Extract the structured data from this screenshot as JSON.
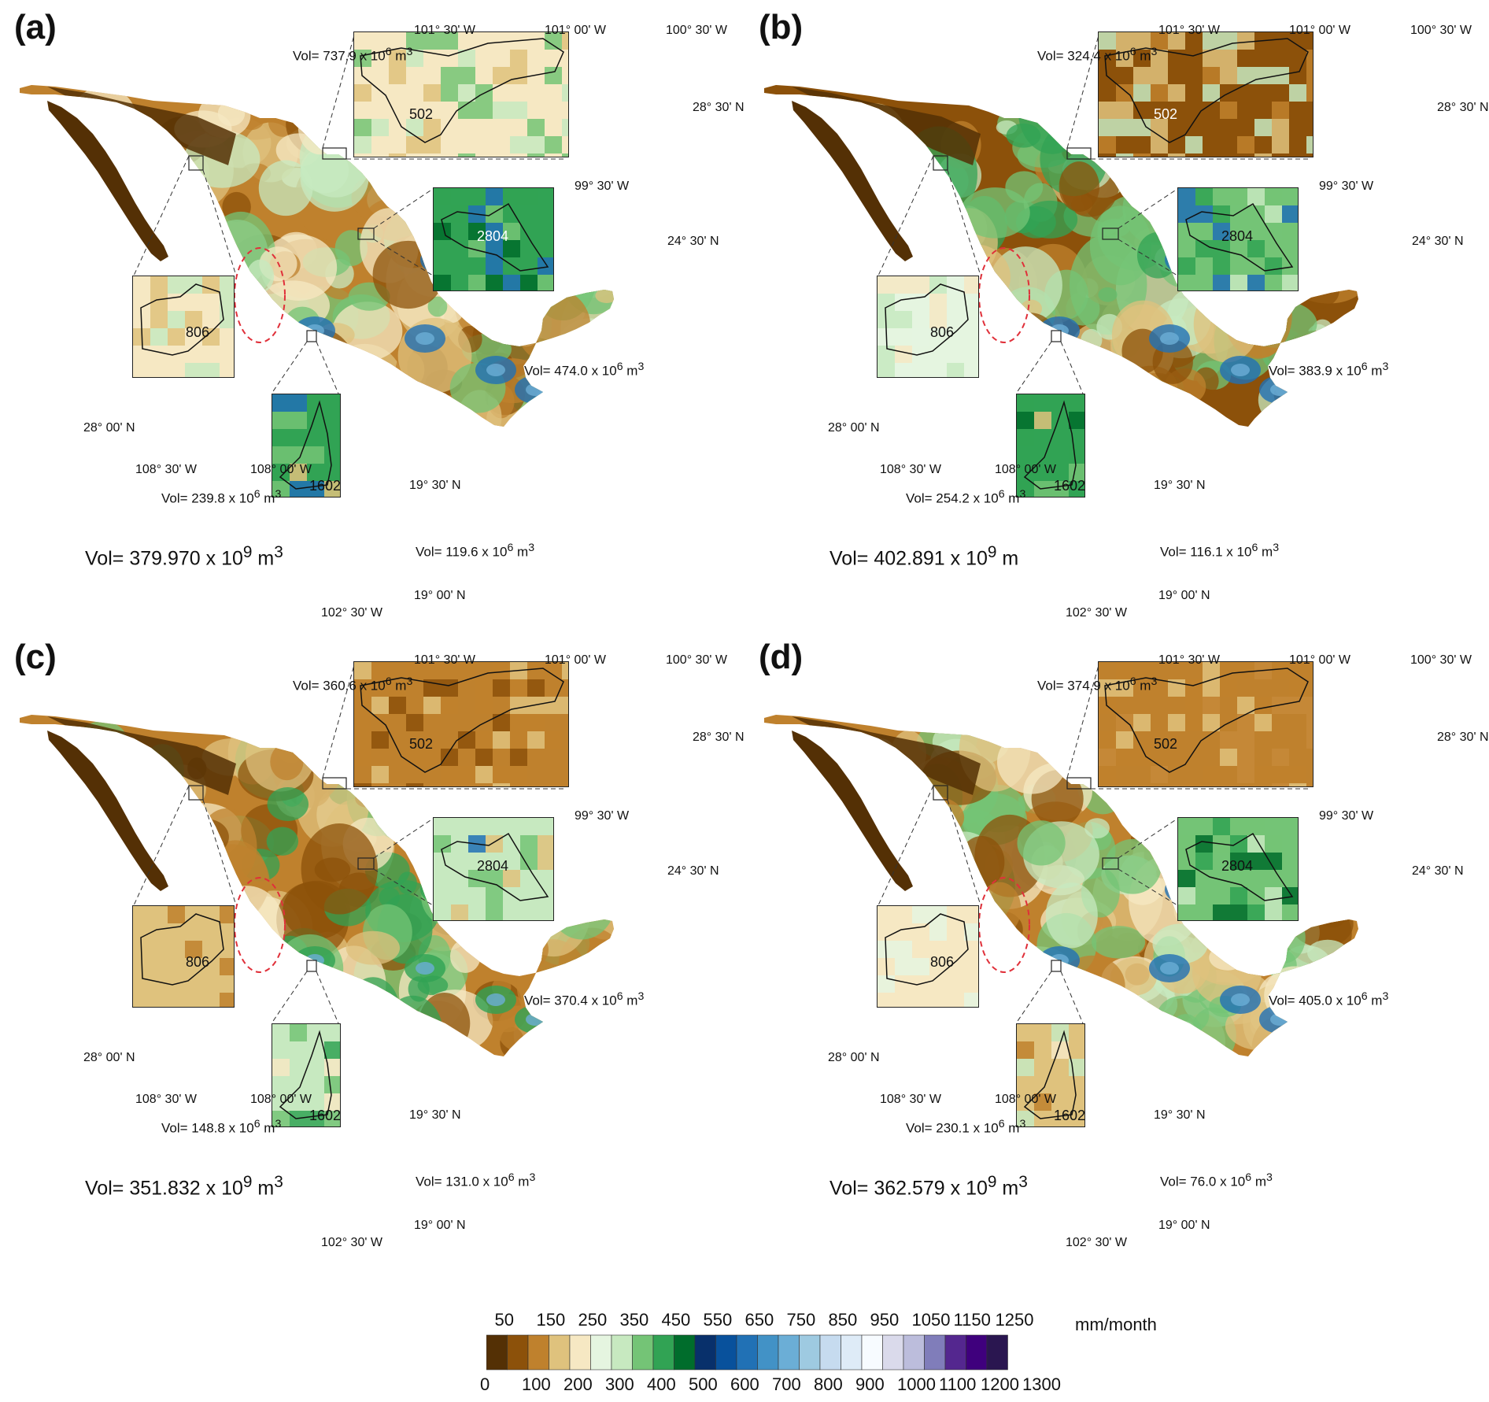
{
  "panels": [
    {
      "label": "(a)",
      "total_prefix": "Vol= ",
      "total_value": "379.970 x 10",
      "total_exp": "9",
      "total_unit": " m",
      "total_unit_exp": "3",
      "inset_502": {
        "vol": "737.9",
        "id": "502"
      },
      "inset_806": {
        "vol": "239.8",
        "id": "806"
      },
      "inset_2804": {
        "vol": "474.0",
        "id": "2804"
      },
      "inset_1602": {
        "vol": "119.6",
        "id": "1602"
      }
    },
    {
      "label": "(b)",
      "total_prefix": "Vol= ",
      "total_value": "402.891 x 10",
      "total_exp": "9",
      "total_unit": " m",
      "total_unit_exp": "",
      "inset_502": {
        "vol": "324.4",
        "id": "502"
      },
      "inset_806": {
        "vol": "254.2",
        "id": "806"
      },
      "inset_2804": {
        "vol": "383.9",
        "id": "2804"
      },
      "inset_1602": {
        "vol": "116.1",
        "id": "1602"
      }
    },
    {
      "label": "(c)",
      "total_prefix": "Vol= ",
      "total_value": "351.832 x 10",
      "total_exp": "9",
      "total_unit": " m",
      "total_unit_exp": "3",
      "inset_502": {
        "vol": "360.6",
        "id": "502"
      },
      "inset_806": {
        "vol": "148.8",
        "id": "806"
      },
      "inset_2804": {
        "vol": "370.4",
        "id": "2804"
      },
      "inset_1602": {
        "vol": "131.0",
        "id": "1602"
      }
    },
    {
      "label": "(d)",
      "total_prefix": "Vol= ",
      "total_value": "362.579 x 10",
      "total_exp": "9",
      "total_unit": " m",
      "total_unit_exp": "3",
      "inset_502": {
        "vol": "374.9",
        "id": "502"
      },
      "inset_806": {
        "vol": "230.1",
        "id": "806"
      },
      "inset_2804": {
        "vol": "405.0",
        "id": "2804"
      },
      "inset_1602": {
        "vol": "76.0",
        "id": "1602"
      }
    }
  ],
  "inset_text": {
    "vol_prefix": "Vol= ",
    "vol_suffix": " x 10",
    "vol_exp": "6",
    "vol_unit": " m",
    "vol_unit_exp": "3"
  },
  "coords": {
    "lon_101_30": "101° 30' W",
    "lon_101_00": "101° 00' W",
    "lon_100_30": "100° 30' W",
    "lat_28_30": "28° 30' N",
    "lon_99_30": "99° 30' W",
    "lat_24_30": "24° 30' N",
    "lat_28_00": "28° 00' N",
    "lon_108_30": "108° 30' W",
    "lon_108_00": "108° 00' W",
    "lat_19_30": "19° 30' N",
    "lat_19_00": "19° 00' N",
    "lon_102_30": "102° 30' W"
  },
  "legend": {
    "unit": "mm/month",
    "top_labels": [
      "50",
      "150",
      "250",
      "350",
      "450",
      "550",
      "650",
      "750",
      "850",
      "950",
      "1050",
      "1150",
      "1250"
    ],
    "bottom_labels": [
      "0",
      "100",
      "200",
      "300",
      "400",
      "500",
      "600",
      "700",
      "800",
      "900",
      "1000",
      "1100",
      "1200",
      "1300"
    ],
    "colors": [
      "#543005",
      "#8c510a",
      "#bf812d",
      "#dfc27d",
      "#f6e8c3",
      "#e5f5e0",
      "#c7e9c0",
      "#74c476",
      "#31a354",
      "#006d2c",
      "#08306b",
      "#08519c",
      "#2171b5",
      "#4292c6",
      "#6baed6",
      "#9ecae1",
      "#c6dbef",
      "#deebf7",
      "#f7fbff",
      "#dadaeb",
      "#bcbddc",
      "#807dba",
      "#54278f",
      "#3f007d",
      "#2a1650"
    ]
  }
}
